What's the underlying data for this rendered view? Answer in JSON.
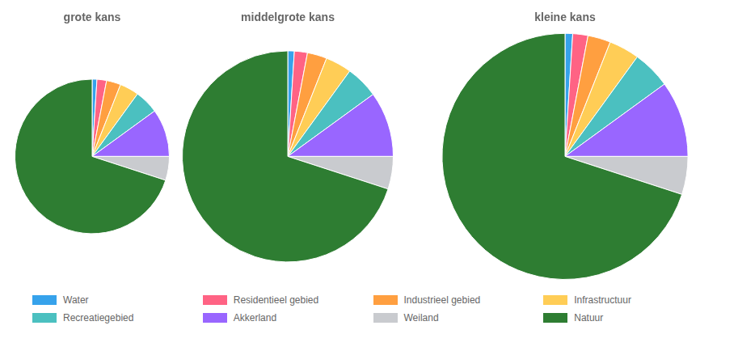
{
  "chart_data": [
    {
      "type": "pie",
      "title": "grote kans",
      "categories": [
        "Water",
        "Residentieel gebied",
        "Industrieel gebied",
        "Infrastructuur",
        "Recreatiegebied",
        "Akkerland",
        "Weiland",
        "Natuur"
      ],
      "values": [
        1,
        2,
        3,
        4,
        5,
        10,
        5,
        70
      ],
      "colors": [
        "#36a2eb",
        "#ff6384",
        "#ff9f40",
        "#ffcd56",
        "#4bc0c0",
        "#9966ff",
        "#c9cbcf",
        "#2e7d32"
      ],
      "legend": "bottom"
    },
    {
      "type": "pie",
      "title": "middelgrote kans",
      "categories": [
        "Water",
        "Residentieel gebied",
        "Industrieel gebied",
        "Infrastructuur",
        "Recreatiegebied",
        "Akkerland",
        "Weiland",
        "Natuur"
      ],
      "values": [
        1,
        2,
        3,
        4,
        5,
        10,
        5,
        70
      ],
      "colors": [
        "#36a2eb",
        "#ff6384",
        "#ff9f40",
        "#ffcd56",
        "#4bc0c0",
        "#9966ff",
        "#c9cbcf",
        "#2e7d32"
      ],
      "legend": "bottom"
    },
    {
      "type": "pie",
      "title": "kleine kans",
      "categories": [
        "Water",
        "Residentieel gebied",
        "Industrieel gebied",
        "Infrastructuur",
        "Recreatiegebied",
        "Akkerland",
        "Weiland",
        "Natuur"
      ],
      "values": [
        1,
        2,
        3,
        4,
        5,
        10,
        5,
        70
      ],
      "colors": [
        "#36a2eb",
        "#ff6384",
        "#ff9f40",
        "#ffcd56",
        "#4bc0c0",
        "#9966ff",
        "#c9cbcf",
        "#2e7d32"
      ],
      "legend": "bottom"
    }
  ]
}
